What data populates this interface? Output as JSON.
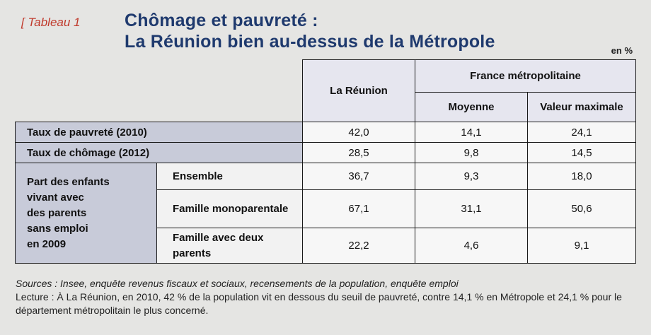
{
  "header": {
    "tag": "[ Tableau 1",
    "title_line1": "Chômage et pauvreté :",
    "title_line2": "La Réunion bien au-dessus de la Métropole",
    "unit": "en %"
  },
  "table": {
    "col_reunion": "La Réunion",
    "col_france": "France métropolitaine",
    "col_moyenne": "Moyenne",
    "col_max": "Valeur maximale",
    "rows": [
      {
        "label": "Taux de pauvreté (2010)",
        "reunion": "42,0",
        "moyenne": "14,1",
        "max": "24,1"
      },
      {
        "label": "Taux de chômage (2012)",
        "reunion": "28,5",
        "moyenne": "9,8",
        "max": "14,5"
      }
    ],
    "group_label_lines": [
      "Part des enfants",
      "vivant avec",
      "des parents",
      "sans emploi",
      "en 2009"
    ],
    "group_rows": [
      {
        "label": "Ensemble",
        "reunion": "36,7",
        "moyenne": "9,3",
        "max": "18,0"
      },
      {
        "label": "Famille monoparentale",
        "reunion": "67,1",
        "moyenne": "31,1",
        "max": "50,6"
      },
      {
        "label": "Famille avec deux parents",
        "reunion": "22,2",
        "moyenne": "4,6",
        "max": "9,1"
      }
    ]
  },
  "notes": {
    "sources": "Sources : Insee, enquête revenus fiscaux et sociaux, recensements de la population, enquête emploi",
    "lecture": "Lecture : À La Réunion, en 2010, 42 % de la population vit en dessous du seuil de pauvreté, contre 14,1 % en Métropole et 24,1 % pour le département métropolitain le plus concerné."
  }
}
